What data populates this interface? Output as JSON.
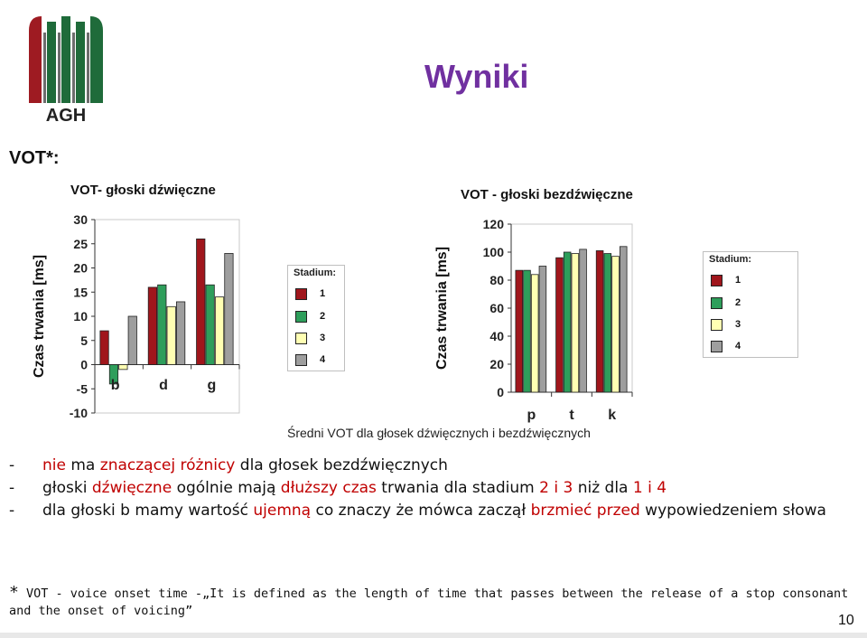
{
  "slide": {
    "title": "Wyniki",
    "vot_label": "VOT*:",
    "caption": "Średni VOT dla głosek dźwięcznych i bezdźwięcznych",
    "logo_text": "AGH",
    "page_number": "10"
  },
  "bullets": [
    {
      "dash": "-",
      "parts": [
        {
          "t": "nie",
          "red": true
        },
        {
          "t": " ma ",
          "red": false
        },
        {
          "t": "znaczącej",
          "red": true
        },
        {
          "t": " ",
          "red": false
        },
        {
          "t": "różnicy",
          "red": true
        },
        {
          "t": " dla głosek bezdźwięcznych",
          "red": false
        }
      ]
    },
    {
      "dash": "-",
      "parts": [
        {
          "t": "głoski ",
          "red": false
        },
        {
          "t": "dźwięczne",
          "red": true
        },
        {
          "t": " ogólnie mają ",
          "red": false
        },
        {
          "t": "dłuższy czas",
          "red": true
        },
        {
          "t": " trwania dla stadium ",
          "red": false
        },
        {
          "t": "2 i 3",
          "red": true
        },
        {
          "t": " niż dla ",
          "red": false
        },
        {
          "t": "1 i 4",
          "red": true
        }
      ]
    },
    {
      "dash": "-",
      "parts": [
        {
          "t": "dla głoski b mamy wartość ",
          "red": false
        },
        {
          "t": "ujemną",
          "red": true
        },
        {
          "t": " co znaczy że mówca zaczął ",
          "red": false
        },
        {
          "t": "brzmieć",
          "red": true
        },
        {
          "t": " ",
          "red": false
        },
        {
          "t": "przed",
          "red": true
        },
        {
          "t": " wypowiedzeniem słowa",
          "red": false
        }
      ]
    }
  ],
  "footnote": {
    "star": "*",
    "text": " VOT - voice onset time -„It is defined as the length of time that passes between the release of a stop consonant and the onset of voicing”"
  },
  "legend": {
    "title": "Stadium:",
    "items": [
      "1",
      "2",
      "3",
      "4"
    ]
  },
  "colors": {
    "title": "#7030A0",
    "accent_red": "#C00000",
    "s1": "#A0161C",
    "s2": "#2E9E5B",
    "s3": "#FFFFB3",
    "s4": "#9E9E9E"
  },
  "chart_data": [
    {
      "type": "bar",
      "title": "VOT- głoski dźwięczne",
      "ylabel": "Czas trwania [ms]",
      "xlabel": "",
      "categories": [
        "b",
        "d",
        "g"
      ],
      "ylim": [
        -10,
        30
      ],
      "yticks": [
        -10,
        -5,
        0,
        5,
        10,
        15,
        20,
        25,
        30
      ],
      "series": [
        {
          "name": "1",
          "values": [
            7,
            16,
            26
          ]
        },
        {
          "name": "2",
          "values": [
            -4,
            16.5,
            16.5
          ]
        },
        {
          "name": "3",
          "values": [
            -1,
            12,
            14
          ]
        },
        {
          "name": "4",
          "values": [
            10,
            13,
            23
          ]
        }
      ]
    },
    {
      "type": "bar",
      "title": "VOT - głoski bezdźwięczne",
      "ylabel": "Czas trwania [ms]",
      "xlabel": "",
      "categories": [
        "p",
        "t",
        "k"
      ],
      "ylim": [
        0,
        120
      ],
      "yticks": [
        0,
        20,
        40,
        60,
        80,
        100,
        120
      ],
      "series": [
        {
          "name": "1",
          "values": [
            87,
            96,
            101
          ]
        },
        {
          "name": "2",
          "values": [
            87,
            100,
            99
          ]
        },
        {
          "name": "3",
          "values": [
            84,
            99,
            97
          ]
        },
        {
          "name": "4",
          "values": [
            90,
            102,
            104
          ]
        }
      ]
    }
  ]
}
